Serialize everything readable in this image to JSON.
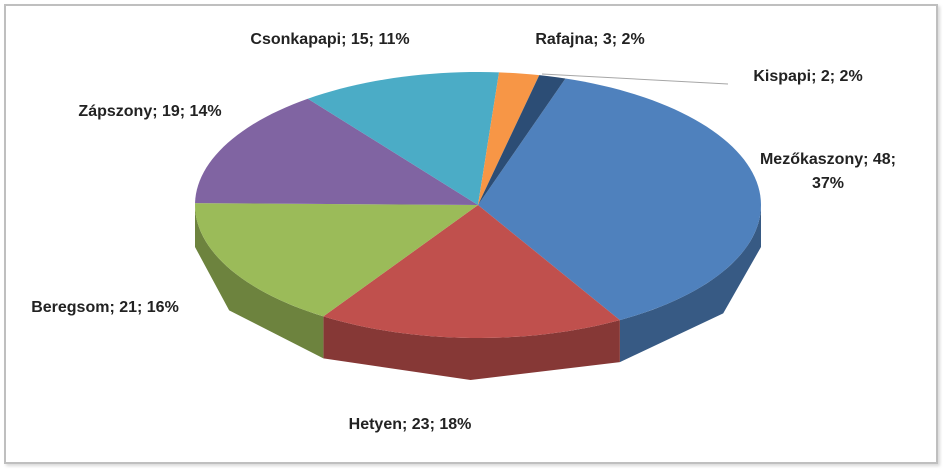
{
  "chart_data": {
    "type": "pie3d",
    "categories": [
      "Mezőkaszony",
      "Hetyen",
      "Beregsom",
      "Zápszony",
      "Csonkapapi",
      "Rafajna",
      "Kispapi"
    ],
    "values": [
      48,
      23,
      21,
      19,
      15,
      3,
      2
    ],
    "value_labels": [
      "Mezőkaszony; 48; 37%",
      "Hetyen; 23; 18%",
      "Beregsom; 21; 16%",
      "Zápszony; 19; 14%",
      "Csonkapapi; 15; 11%",
      "Rafajna; 3; 2%",
      "Kispapi; 2; 2%"
    ],
    "colors": [
      "#4f81bd",
      "#c0504d",
      "#9bbb59",
      "#8064a2",
      "#4bacc6",
      "#f79646",
      "#2c4d75"
    ]
  }
}
